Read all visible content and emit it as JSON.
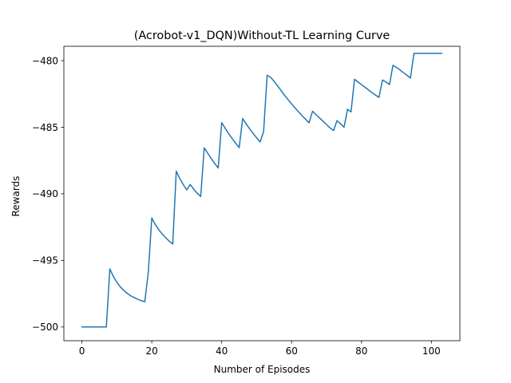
{
  "chart_data": {
    "type": "line",
    "title": "(Acrobot-v1_DQN)Without-TL Learning Curve",
    "xlabel": "Number of Episodes",
    "ylabel": "Rewards",
    "xlim": [
      -5.15,
      108.15
    ],
    "ylim": [
      -501.03,
      -478.92
    ],
    "xticks": [
      0,
      20,
      40,
      60,
      80,
      100
    ],
    "xtick_labels": [
      "0",
      "20",
      "40",
      "60",
      "80",
      "100"
    ],
    "yticks": [
      -500,
      -495,
      -490,
      -485,
      -480
    ],
    "ytick_labels": [
      "−500",
      "−495",
      "−490",
      "−485",
      "−480"
    ],
    "grid": false,
    "legend": "none",
    "series_color": "#1f77b4",
    "series": [
      {
        "x": [
          0,
          1,
          2,
          3,
          4,
          5,
          6,
          7,
          8,
          9,
          10,
          11,
          12,
          13,
          14,
          15,
          16,
          17,
          18,
          19,
          20,
          21,
          22,
          23,
          24,
          25,
          26,
          27,
          28,
          29,
          30,
          31,
          32,
          33,
          34,
          35,
          36,
          37,
          38,
          39,
          40,
          41,
          42,
          43,
          44,
          45,
          46,
          47,
          48,
          49,
          50,
          51,
          52,
          53,
          54,
          55,
          56,
          57,
          58,
          59,
          60,
          61,
          62,
          63,
          64,
          65,
          66,
          67,
          68,
          69,
          70,
          71,
          72,
          73,
          74,
          75,
          76,
          77,
          78,
          79,
          80,
          81,
          82,
          83,
          84,
          85,
          86,
          87,
          88,
          89,
          90,
          91,
          92,
          93,
          94,
          95,
          96,
          97,
          98,
          99,
          100,
          101,
          102,
          103
        ],
        "values": [
          -500,
          -500,
          -500,
          -500,
          -500,
          -500,
          -500,
          -500,
          -495.64,
          -496.2,
          -496.64,
          -496.99,
          -497.26,
          -497.48,
          -497.66,
          -497.8,
          -497.92,
          -498.02,
          -498.1,
          -495.9,
          -491.82,
          -492.3,
          -492.7,
          -493.02,
          -493.3,
          -493.55,
          -493.77,
          -488.3,
          -488.85,
          -489.3,
          -489.7,
          -489.3,
          -489.65,
          -489.95,
          -490.2,
          -486.55,
          -486.95,
          -487.35,
          -487.72,
          -488.06,
          -484.65,
          -485.08,
          -485.48,
          -485.85,
          -486.2,
          -486.53,
          -484.35,
          -484.75,
          -485.12,
          -485.47,
          -485.8,
          -486.1,
          -485.3,
          -481.1,
          -481.25,
          -481.55,
          -481.9,
          -482.25,
          -482.6,
          -482.93,
          -483.25,
          -483.55,
          -483.85,
          -484.13,
          -484.4,
          -484.66,
          -483.8,
          -484.05,
          -484.3,
          -484.55,
          -484.8,
          -485.05,
          -485.25,
          -484.5,
          -484.75,
          -485.0,
          -483.65,
          -483.85,
          -481.4,
          -481.6,
          -481.8,
          -482.0,
          -482.2,
          -482.4,
          -482.58,
          -482.76,
          -481.45,
          -481.6,
          -481.8,
          -480.35,
          -480.5,
          -480.7,
          -480.9,
          -481.1,
          -481.3,
          -479.45,
          -479.45,
          -479.45,
          -479.45,
          -479.45,
          -479.45,
          -479.45,
          -479.45,
          -479.45
        ]
      }
    ]
  }
}
